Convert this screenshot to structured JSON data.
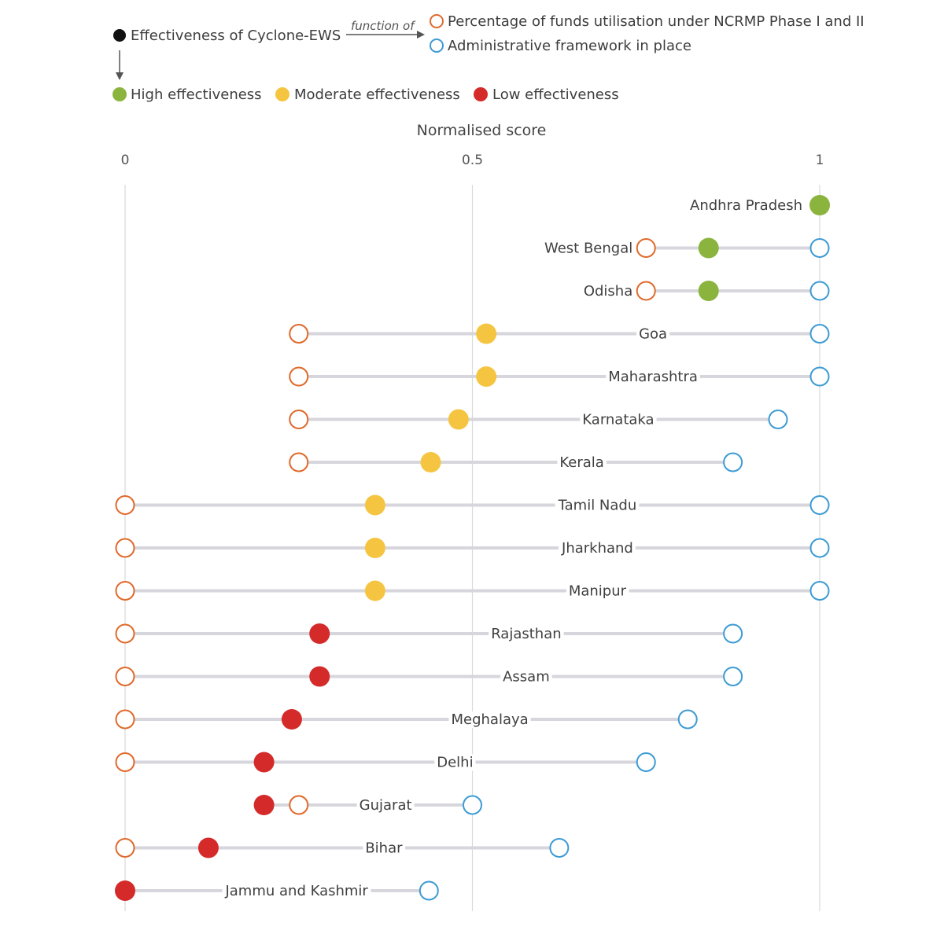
{
  "chart_data": {
    "type": "dot-range",
    "xlabel": "Normalised score",
    "xlim": [
      0,
      1
    ],
    "ticks": [
      {
        "value": 0,
        "label": "0"
      },
      {
        "value": 0.5,
        "label": "0.5"
      },
      {
        "value": 1,
        "label": "1"
      }
    ],
    "legend": {
      "outcome": "Effectiveness of Cyclone-EWS",
      "relation": "function of",
      "factors": [
        {
          "key": "funds",
          "label": "Percentage of funds utilisation under NCRMP Phase I and II",
          "color": "#e06a2c"
        },
        {
          "key": "admin",
          "label": "Administrative framework in place",
          "color": "#3d9bd4"
        }
      ],
      "categories": [
        {
          "key": "high",
          "label": "High effectiveness",
          "color": "#8ab43e"
        },
        {
          "key": "moderate",
          "label": "Moderate effectiveness",
          "color": "#f5c542"
        },
        {
          "key": "low",
          "label": "Low effectiveness",
          "color": "#d42a2a"
        }
      ]
    },
    "series": [
      {
        "state": "Andhra Pradesh",
        "funds": 1.0,
        "admin": 1.0,
        "effectiveness": 1.0,
        "category": "high"
      },
      {
        "state": "West Bengal",
        "funds": 0.75,
        "admin": 1.0,
        "effectiveness": 0.84,
        "category": "high"
      },
      {
        "state": "Odisha",
        "funds": 0.75,
        "admin": 1.0,
        "effectiveness": 0.84,
        "category": "high"
      },
      {
        "state": "Goa",
        "funds": 0.25,
        "admin": 1.0,
        "effectiveness": 0.52,
        "category": "moderate"
      },
      {
        "state": "Maharashtra",
        "funds": 0.25,
        "admin": 1.0,
        "effectiveness": 0.52,
        "category": "moderate"
      },
      {
        "state": "Karnataka",
        "funds": 0.25,
        "admin": 0.94,
        "effectiveness": 0.48,
        "category": "moderate"
      },
      {
        "state": "Kerala",
        "funds": 0.25,
        "admin": 0.875,
        "effectiveness": 0.44,
        "category": "moderate"
      },
      {
        "state": "Tamil Nadu",
        "funds": 0.0,
        "admin": 1.0,
        "effectiveness": 0.36,
        "category": "moderate"
      },
      {
        "state": "Jharkhand",
        "funds": 0.0,
        "admin": 1.0,
        "effectiveness": 0.36,
        "category": "moderate"
      },
      {
        "state": "Manipur",
        "funds": 0.0,
        "admin": 1.0,
        "effectiveness": 0.36,
        "category": "moderate"
      },
      {
        "state": "Rajasthan",
        "funds": 0.0,
        "admin": 0.875,
        "effectiveness": 0.28,
        "category": "low"
      },
      {
        "state": "Assam",
        "funds": 0.0,
        "admin": 0.875,
        "effectiveness": 0.28,
        "category": "low"
      },
      {
        "state": "Meghalaya",
        "funds": 0.0,
        "admin": 0.81,
        "effectiveness": 0.24,
        "category": "low"
      },
      {
        "state": "Delhi",
        "funds": 0.0,
        "admin": 0.75,
        "effectiveness": 0.2,
        "category": "low"
      },
      {
        "state": "Gujarat",
        "funds": 0.25,
        "admin": 0.5,
        "effectiveness": 0.2,
        "category": "low"
      },
      {
        "state": "Bihar",
        "funds": 0.0,
        "admin": 0.625,
        "effectiveness": 0.12,
        "category": "low"
      },
      {
        "state": "Jammu and Kashmir",
        "funds": 0.0,
        "admin": 0.4375,
        "effectiveness": 0.0,
        "category": "low"
      }
    ]
  },
  "styles": {
    "grid_color": "#d9d9d9",
    "range_color": "#d6d6dc",
    "outcome_color": "#111111",
    "text_color": "#3d3d3d"
  }
}
